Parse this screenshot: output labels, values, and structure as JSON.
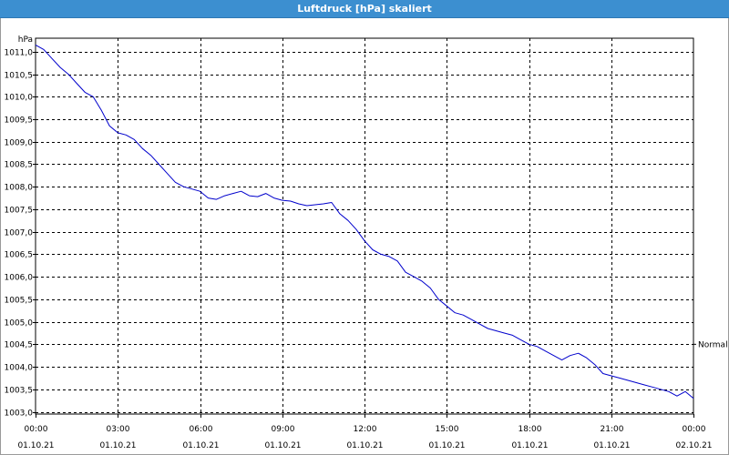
{
  "window": {
    "title": "Luftdruck [hPa] skaliert"
  },
  "colors": {
    "titlebar": "#3c8fd0",
    "series": "#0000cc",
    "grid": "#000000"
  },
  "chart_data": {
    "type": "line",
    "title": "Luftdruck [hPa] skaliert",
    "y_unit_label": "hPa",
    "ylim": [
      1002.95,
      1011.3
    ],
    "y_ticks": [
      1011.0,
      1010.5,
      1010.0,
      1009.5,
      1009.0,
      1008.5,
      1008.0,
      1007.5,
      1007.0,
      1006.5,
      1006.0,
      1005.5,
      1005.0,
      1004.5,
      1004.0,
      1003.5,
      1003.0
    ],
    "y_tick_labels": [
      "1011,0",
      "1010,5",
      "1010,0",
      "1009,5",
      "1009,0",
      "1008,5",
      "1008,0",
      "1007,5",
      "1007,0",
      "1006,5",
      "1006,0",
      "1005,5",
      "1005,0",
      "1004,5",
      "1004,0",
      "1003,5",
      "1003,0"
    ],
    "xlim": [
      0,
      24
    ],
    "x_ticks": [
      0,
      3,
      6,
      9,
      12,
      15,
      18,
      21,
      24
    ],
    "x_tick_labels_time": [
      "00:00",
      "03:00",
      "06:00",
      "09:00",
      "12:00",
      "15:00",
      "18:00",
      "21:00",
      "00:00"
    ],
    "x_tick_labels_date": [
      "01.10.21",
      "01.10.21",
      "01.10.21",
      "01.10.21",
      "01.10.21",
      "01.10.21",
      "01.10.21",
      "01.10.21",
      "02.10.21"
    ],
    "x_unit": "hours from 01.10.21 00:00",
    "grid": true,
    "grid_style": "dashed",
    "reference_line": {
      "label": "Normal",
      "value": 1004.5
    },
    "series": [
      {
        "x": [
          0.0,
          0.3,
          0.6,
          0.9,
          1.2,
          1.5,
          1.8,
          2.1,
          2.4,
          2.7,
          3.0,
          3.3,
          3.6,
          3.9,
          4.2,
          4.5,
          4.8,
          5.1,
          5.4,
          5.7,
          6.0,
          6.3,
          6.6,
          6.9,
          7.2,
          7.5,
          7.8,
          8.1,
          8.4,
          8.7,
          9.0,
          9.3,
          9.6,
          9.9,
          10.2,
          10.5,
          10.8,
          11.1,
          11.4,
          11.7,
          12.0,
          12.3,
          12.6,
          12.9,
          13.2,
          13.5,
          13.8,
          14.1,
          14.4,
          14.7,
          15.0,
          15.3,
          15.6,
          15.9,
          16.2,
          16.5,
          16.8,
          17.1,
          17.4,
          17.7,
          18.0,
          18.3,
          18.6,
          18.9,
          19.2,
          19.5,
          19.8,
          20.1,
          20.4,
          20.7,
          21.0,
          21.3,
          21.6,
          21.9,
          22.2,
          22.5,
          22.8,
          23.1,
          23.4,
          23.7,
          24.0
        ],
        "values": [
          1011.15,
          1011.05,
          1010.85,
          1010.65,
          1010.5,
          1010.3,
          1010.1,
          1010.0,
          1009.7,
          1009.35,
          1009.2,
          1009.15,
          1009.05,
          1008.85,
          1008.7,
          1008.5,
          1008.3,
          1008.1,
          1008.0,
          1007.95,
          1007.9,
          1007.75,
          1007.72,
          1007.8,
          1007.85,
          1007.9,
          1007.8,
          1007.78,
          1007.85,
          1007.75,
          1007.7,
          1007.68,
          1007.62,
          1007.58,
          1007.6,
          1007.62,
          1007.65,
          1007.4,
          1007.25,
          1007.05,
          1006.8,
          1006.6,
          1006.5,
          1006.45,
          1006.35,
          1006.1,
          1006.0,
          1005.9,
          1005.75,
          1005.5,
          1005.35,
          1005.2,
          1005.15,
          1005.05,
          1004.95,
          1004.85,
          1004.8,
          1004.75,
          1004.7,
          1004.6,
          1004.5,
          1004.45,
          1004.35,
          1004.25,
          1004.15,
          1004.25,
          1004.3,
          1004.2,
          1004.05,
          1003.85,
          1003.8,
          1003.75,
          1003.7,
          1003.65,
          1003.6,
          1003.55,
          1003.5,
          1003.45,
          1003.35,
          1003.45,
          1003.3
        ]
      }
    ]
  }
}
